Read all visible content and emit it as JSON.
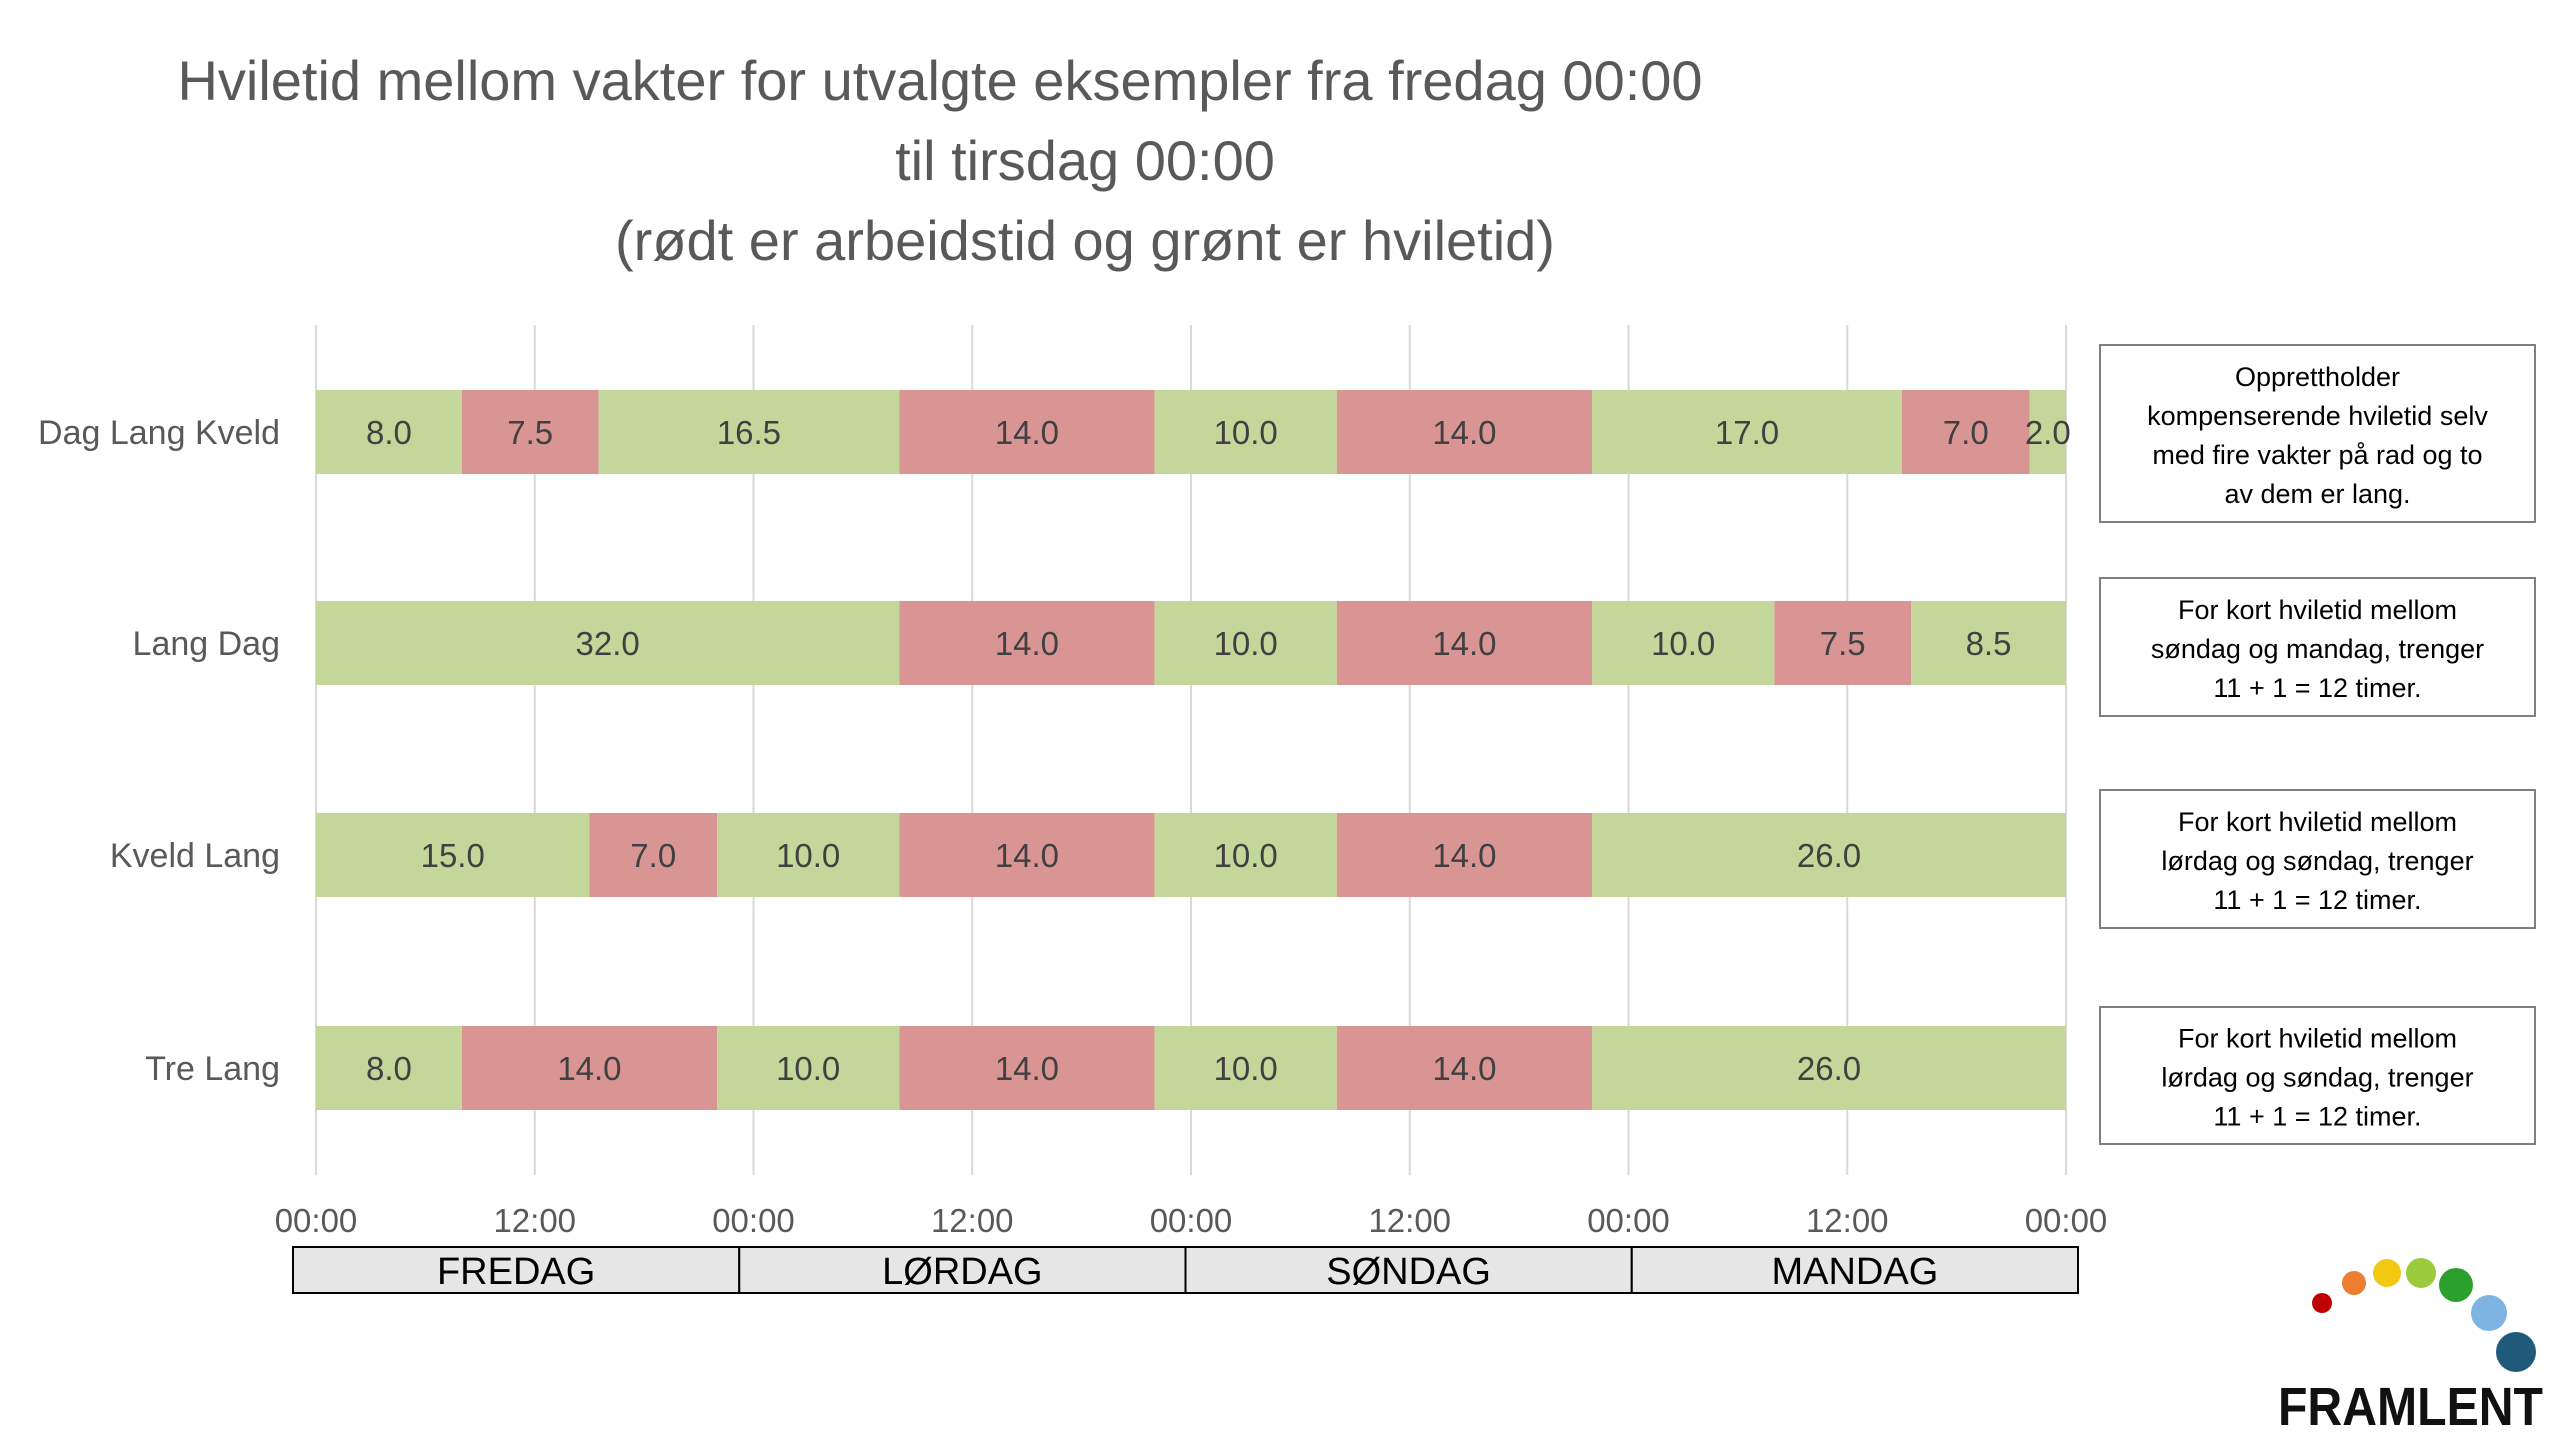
{
  "colors": {
    "work": "#D99594",
    "rest": "#C4D79B",
    "grid": "#D9D9D9",
    "text": "#595959",
    "day_band": "#E6E6E6"
  },
  "chart_data": {
    "type": "bar",
    "orientation": "horizontal-stacked",
    "title_lines": [
      "Hviletid mellom vakter for utvalgte eksempler fra fredag 00:00",
      "til tirsdag 00:00",
      "(rødt er arbeidstid og grønt er hviletid)"
    ],
    "xlim": [
      0,
      96
    ],
    "x_tick_labels": [
      "00:00",
      "12:00",
      "00:00",
      "12:00",
      "00:00",
      "12:00",
      "00:00",
      "12:00",
      "00:00"
    ],
    "grid": true,
    "categories": [
      "Dag Lang Kveld",
      "Lang Dag",
      "Kveld Lang",
      "Tre Lang"
    ],
    "rows": [
      {
        "category": "Dag Lang Kveld",
        "segments": [
          {
            "type": "rest",
            "value": 8.0,
            "label": "8.0"
          },
          {
            "type": "work",
            "value": 7.5,
            "label": "7.5"
          },
          {
            "type": "rest",
            "value": 16.5,
            "label": "16.5"
          },
          {
            "type": "work",
            "value": 14.0,
            "label": "14.0"
          },
          {
            "type": "rest",
            "value": 10.0,
            "label": "10.0"
          },
          {
            "type": "work",
            "value": 14.0,
            "label": "14.0"
          },
          {
            "type": "rest",
            "value": 17.0,
            "label": "17.0"
          },
          {
            "type": "work",
            "value": 7.0,
            "label": "7.0"
          },
          {
            "type": "rest",
            "value": 2.0,
            "label": "2.0"
          }
        ]
      },
      {
        "category": "Lang Dag",
        "segments": [
          {
            "type": "rest",
            "value": 32.0,
            "label": "32.0"
          },
          {
            "type": "work",
            "value": 14.0,
            "label": "14.0"
          },
          {
            "type": "rest",
            "value": 10.0,
            "label": "10.0"
          },
          {
            "type": "work",
            "value": 14.0,
            "label": "14.0"
          },
          {
            "type": "rest",
            "value": 10.0,
            "label": "10.0"
          },
          {
            "type": "work",
            "value": 7.5,
            "label": "7.5"
          },
          {
            "type": "rest",
            "value": 8.5,
            "label": "8.5"
          }
        ]
      },
      {
        "category": "Kveld Lang",
        "segments": [
          {
            "type": "rest",
            "value": 15.0,
            "label": "15.0"
          },
          {
            "type": "work",
            "value": 7.0,
            "label": "7.0"
          },
          {
            "type": "rest",
            "value": 10.0,
            "label": "10.0"
          },
          {
            "type": "work",
            "value": 14.0,
            "label": "14.0"
          },
          {
            "type": "rest",
            "value": 10.0,
            "label": "10.0"
          },
          {
            "type": "work",
            "value": 14.0,
            "label": "14.0"
          },
          {
            "type": "rest",
            "value": 26.0,
            "label": "26.0"
          }
        ]
      },
      {
        "category": "Tre Lang",
        "segments": [
          {
            "type": "rest",
            "value": 8.0,
            "label": "8.0"
          },
          {
            "type": "work",
            "value": 14.0,
            "label": "14.0"
          },
          {
            "type": "rest",
            "value": 10.0,
            "label": "10.0"
          },
          {
            "type": "work",
            "value": 14.0,
            "label": "14.0"
          },
          {
            "type": "rest",
            "value": 10.0,
            "label": "10.0"
          },
          {
            "type": "work",
            "value": 14.0,
            "label": "14.0"
          },
          {
            "type": "rest",
            "value": 26.0,
            "label": "26.0"
          }
        ]
      }
    ],
    "days": [
      "FREDAG",
      "LØRDAG",
      "SØNDAG",
      "MANDAG"
    ],
    "notes": [
      [
        "Opprettholder",
        "kompenserende hviletid selv",
        "med fire vakter på rad og to",
        "av dem er lang."
      ],
      [
        "For kort hviletid mellom",
        "søndag og mandag, trenger",
        "11 + 1 = 12 timer."
      ],
      [
        "For kort hviletid mellom",
        "lørdag og søndag, trenger",
        "11 + 1 = 12 timer."
      ],
      [
        "For kort hviletid mellom",
        "lørdag og søndag, trenger",
        "11 + 1 = 12 timer."
      ]
    ]
  },
  "logo": {
    "text": "FRAMLENT",
    "dot_colors": [
      "#C00000",
      "#ED7D31",
      "#F2C811",
      "#9BCB3C",
      "#2CA02C",
      "#7EB4E2",
      "#1F5A7A"
    ]
  }
}
